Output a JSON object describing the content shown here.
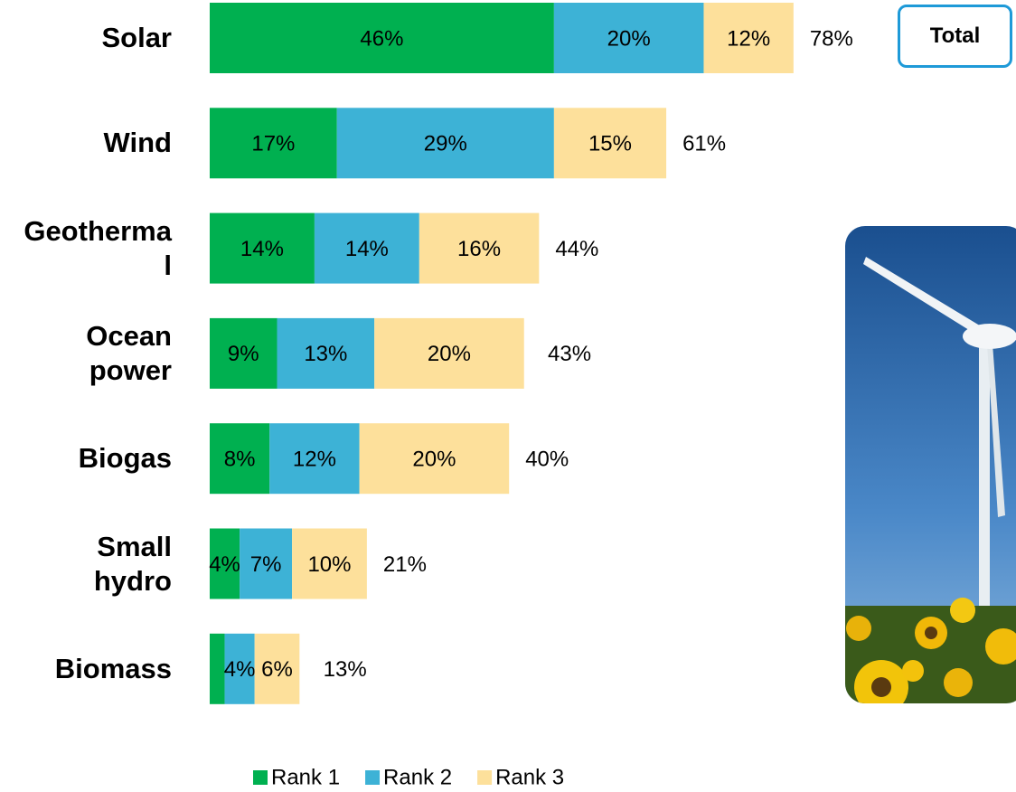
{
  "chart_data": {
    "type": "stacked-bar-horizontal",
    "categories": [
      "Solar",
      "Wind",
      "Geothermal",
      "Ocean power",
      "Biogas",
      "Small hydro",
      "Biomass"
    ],
    "series": [
      {
        "name": "Rank 1",
        "color": "#00b050",
        "values": [
          46,
          17,
          14,
          9,
          8,
          4,
          2
        ],
        "value_labels": [
          "46%",
          "17%",
          "14%",
          "9%",
          "8%",
          "4%",
          null
        ]
      },
      {
        "name": "Rank 2",
        "color": "#3db2d6",
        "values": [
          20,
          29,
          14,
          13,
          12,
          7,
          4
        ],
        "value_labels": [
          "20%",
          "29%",
          "14%",
          "13%",
          "12%",
          "7%",
          "4%"
        ]
      },
      {
        "name": "Rank 3",
        "color": "#fde09b",
        "values": [
          12,
          15,
          16,
          20,
          20,
          10,
          6
        ],
        "value_labels": [
          "12%",
          "15%",
          "16%",
          "20%",
          "20%",
          "10%",
          "6%"
        ]
      }
    ],
    "totals": [
      78,
      61,
      44,
      43,
      40,
      21,
      13
    ],
    "total_labels": [
      "78%",
      "61%",
      "44%",
      "43%",
      "40%",
      "21%",
      "13%"
    ],
    "button": "Total"
  }
}
